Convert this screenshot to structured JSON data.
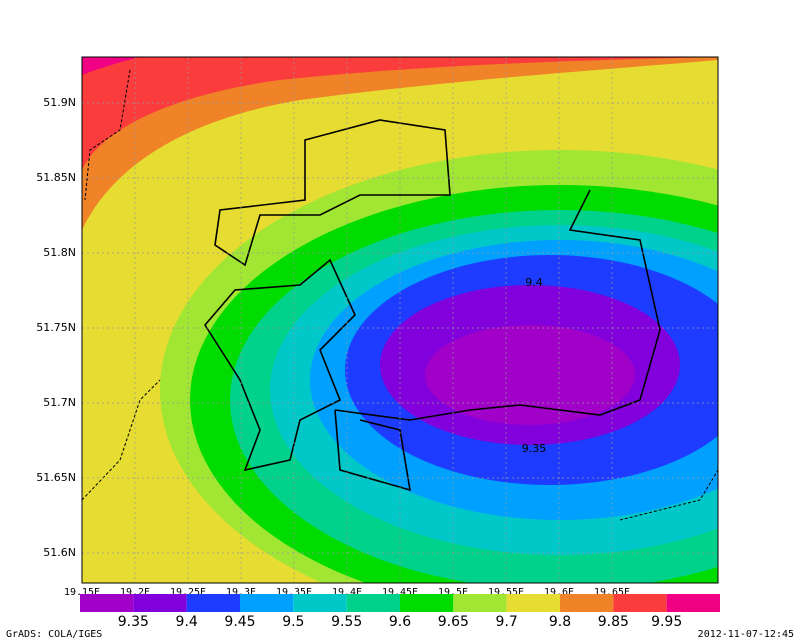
{
  "map": {
    "lat_labels": [
      "51.9N",
      "51.85N",
      "51.8N",
      "51.75N",
      "51.7N",
      "51.65N",
      "51.6N"
    ],
    "lon_labels": [
      "19.15E",
      "19.2E",
      "19.25E",
      "19.3E",
      "19.35E",
      "19.4E",
      "19.45E",
      "19.5E",
      "19.55E",
      "19.6E",
      "19.65E"
    ],
    "contour_labels": [
      "9.4",
      "9.35"
    ]
  },
  "colorbar": {
    "levels": [
      9.35,
      9.4,
      9.45,
      9.5,
      9.55,
      9.6,
      9.65,
      9.7,
      9.8,
      9.85,
      9.95
    ],
    "colors": [
      "#a000c8",
      "#8200dc",
      "#1e3cff",
      "#00a0ff",
      "#00c8c8",
      "#00d28c",
      "#00dc00",
      "#a0e632",
      "#e6dc32",
      "#f08228",
      "#fa3c3c",
      "#f00082"
    ]
  },
  "footer": {
    "left": "GrADS: COLA/IGES",
    "right": "2012-11-07-12:45"
  }
}
